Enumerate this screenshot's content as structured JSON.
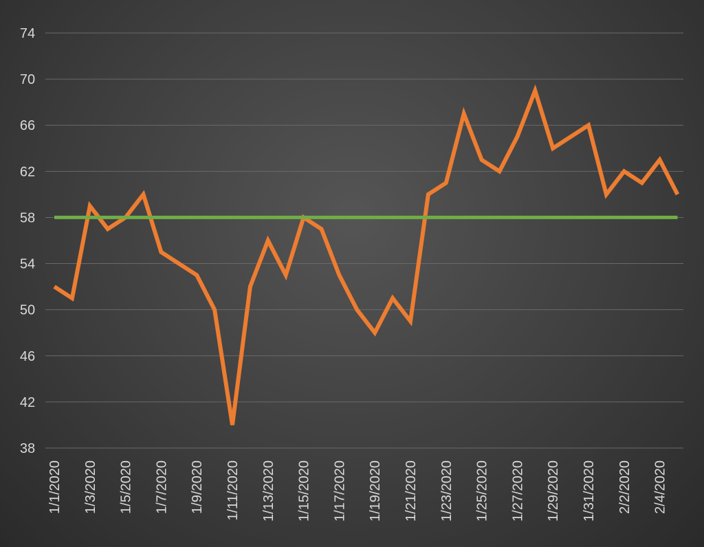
{
  "chart_data": {
    "type": "line",
    "title": "",
    "xlabel": "",
    "ylabel": "",
    "ylim": [
      38,
      74
    ],
    "yticks": [
      38,
      42,
      46,
      50,
      54,
      58,
      62,
      66,
      70,
      74
    ],
    "grid": true,
    "x": [
      "1/1/2020",
      "1/2/2020",
      "1/3/2020",
      "1/4/2020",
      "1/5/2020",
      "1/6/2020",
      "1/7/2020",
      "1/8/2020",
      "1/9/2020",
      "1/10/2020",
      "1/11/2020",
      "1/12/2020",
      "1/13/2020",
      "1/14/2020",
      "1/15/2020",
      "1/16/2020",
      "1/17/2020",
      "1/18/2020",
      "1/19/2020",
      "1/20/2020",
      "1/21/2020",
      "1/22/2020",
      "1/23/2020",
      "1/24/2020",
      "1/25/2020",
      "1/26/2020",
      "1/27/2020",
      "1/28/2020",
      "1/29/2020",
      "1/30/2020",
      "1/31/2020",
      "2/1/2020",
      "2/2/2020",
      "2/3/2020",
      "2/4/2020",
      "2/5/2020"
    ],
    "xtick_labels": [
      "1/1/2020",
      "1/3/2020",
      "1/5/2020",
      "1/7/2020",
      "1/9/2020",
      "1/11/2020",
      "1/13/2020",
      "1/15/2020",
      "1/17/2020",
      "1/19/2020",
      "1/21/2020",
      "1/23/2020",
      "1/25/2020",
      "1/27/2020",
      "1/29/2020",
      "1/31/2020",
      "2/2/2020",
      "2/4/2020"
    ],
    "series": [
      {
        "color": "#ed7d31",
        "values": [
          52,
          51,
          59,
          57,
          58,
          60,
          55,
          54,
          53,
          50,
          40,
          52,
          56,
          53,
          58,
          57,
          53,
          50,
          48,
          51,
          49,
          60,
          61,
          67,
          63,
          62,
          65,
          69,
          64,
          65,
          66,
          60,
          62,
          61,
          63,
          60
        ]
      },
      {
        "color": "#70ad47",
        "values": [
          58,
          58,
          58,
          58,
          58,
          58,
          58,
          58,
          58,
          58,
          58,
          58,
          58,
          58,
          58,
          58,
          58,
          58,
          58,
          58,
          58,
          58,
          58,
          58,
          58,
          58,
          58,
          58,
          58,
          58,
          58,
          58,
          58,
          58,
          58,
          58
        ]
      }
    ]
  }
}
